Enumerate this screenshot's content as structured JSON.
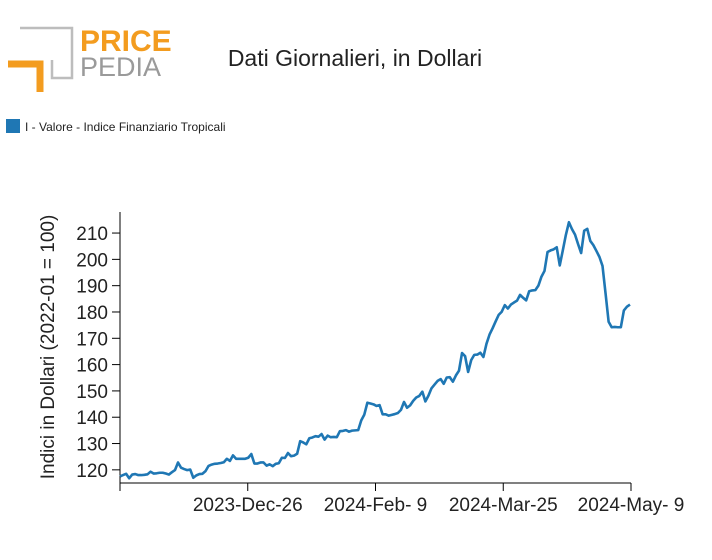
{
  "logo": {
    "line1": "PRICE",
    "line2": "PEDIA",
    "accent_color": "#f39c1f",
    "gray_color": "#9a9a9a"
  },
  "chart_data": {
    "type": "line",
    "title": "Dati Giornalieri, in Dollari",
    "ylabel": "Indici in Dollari (2022-01 = 100)",
    "xlabel": "",
    "ylim": [
      115,
      218
    ],
    "y_ticks": [
      120,
      130,
      140,
      150,
      160,
      170,
      180,
      190,
      200,
      210
    ],
    "x_tick_labels": [
      "",
      "2023-Dec-26",
      "2024-Feb- 9",
      "2024-Mar-25",
      "2024-May- 9"
    ],
    "grid": false,
    "legend_position": "top-left",
    "series": [
      {
        "name": "I - Valore - Indice Finanziario Tropicali",
        "color": "#1f77b4",
        "values": [
          117.5,
          118.0,
          118.5,
          116.8,
          118.2,
          118.4,
          118.0,
          118.0,
          118.1,
          118.3,
          119.3,
          118.6,
          118.7,
          118.9,
          118.9,
          118.6,
          118.2,
          119.1,
          119.9,
          122.8,
          120.8,
          120.3,
          119.9,
          120.1,
          117.0,
          117.9,
          118.4,
          118.5,
          119.5,
          121.5,
          122.0,
          122.3,
          122.4,
          122.6,
          122.9,
          124.2,
          123.4,
          125.5,
          124.2,
          124.2,
          124.2,
          124.2,
          124.6,
          126.0,
          122.4,
          122.4,
          122.8,
          122.8,
          121.6,
          122.1,
          121.4,
          122.3,
          122.5,
          124.6,
          124.5,
          126.4,
          125.2,
          125.4,
          126.1,
          130.9,
          130.4,
          129.7,
          132.0,
          132.3,
          132.8,
          132.6,
          133.6,
          131.5,
          133.0,
          132.4,
          132.5,
          132.4,
          134.7,
          134.8,
          135.1,
          134.5,
          134.9,
          135.0,
          135.1,
          138.8,
          141.0,
          145.5,
          145.2,
          144.9,
          144.3,
          144.6,
          141.1,
          141.1,
          140.6,
          140.9,
          141.2,
          141.6,
          142.8,
          145.8,
          143.6,
          144.5,
          146.2,
          147.5,
          148.1,
          149.7,
          146.0,
          148.2,
          151.0,
          152.4,
          153.8,
          154.5,
          152.7,
          155.1,
          155.2,
          153.5,
          155.9,
          157.7,
          164.4,
          163.2,
          157.2,
          161.7,
          163.7,
          163.8,
          164.5,
          162.9,
          167.9,
          171.4,
          173.8,
          176.4,
          178.9,
          180.1,
          182.6,
          181.3,
          182.8,
          183.6,
          184.3,
          186.5,
          185.4,
          184.4,
          187.9,
          188.2,
          188.3,
          190.0,
          193.4,
          195.6,
          202.8,
          203.4,
          203.8,
          204.6,
          197.7,
          203.4,
          209.3,
          214.1,
          211.5,
          209.4,
          205.8,
          202.4,
          210.9,
          211.6,
          207.0,
          205.4,
          203.2,
          200.9,
          197.5,
          187.0,
          176.3,
          174.2,
          174.3,
          174.2,
          174.2,
          180.6,
          182.0,
          182.8
        ]
      }
    ]
  }
}
